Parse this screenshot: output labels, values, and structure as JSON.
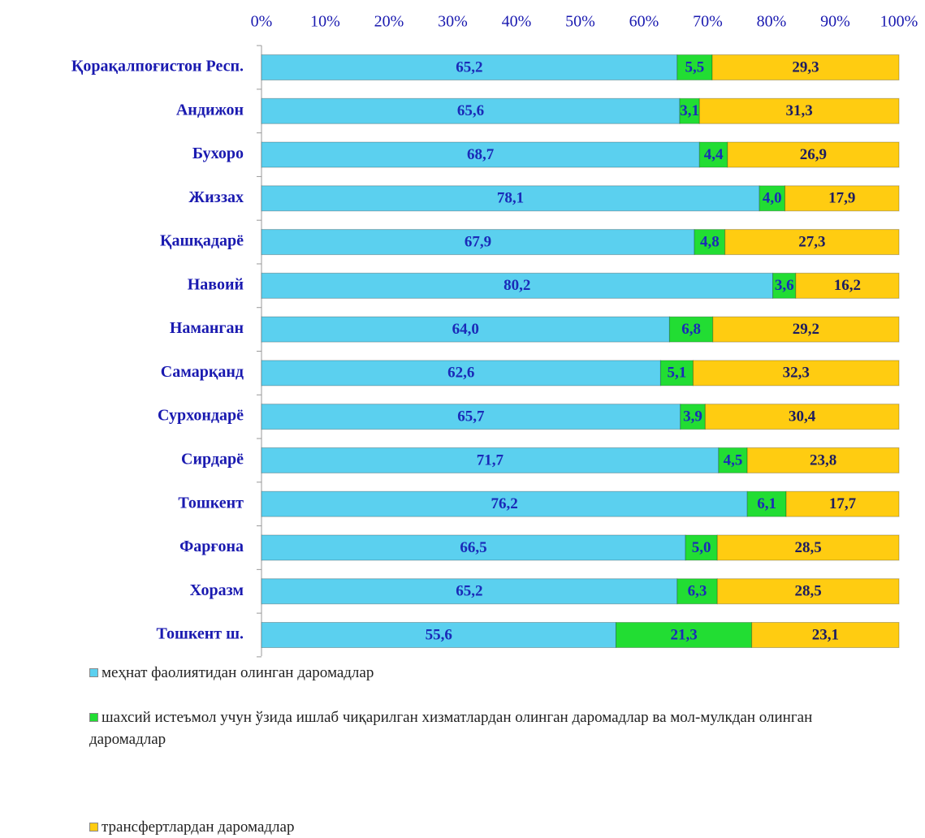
{
  "chart_data": {
    "type": "stacked_barh",
    "categories": [
      "Қорақалпоғистон Респ.",
      "Андижон",
      "Бухоро",
      "Жиззах",
      "Қашқадарё",
      "Навоий",
      "Наманган",
      "Самарқанд",
      "Сурхондарё",
      "Сирдарё",
      "Тошкент",
      "Фарғона",
      "Хоразм",
      "Тошкент ш."
    ],
    "series": [
      {
        "name": "меҳнат фаолиятидан олинган даромадлар",
        "color": "#5bd0ef",
        "values": [
          65.2,
          65.6,
          68.7,
          78.1,
          67.9,
          80.2,
          64.0,
          62.6,
          65.7,
          71.7,
          76.2,
          66.5,
          65.2,
          55.6
        ],
        "value_labels": [
          "65,2",
          "65,6",
          "68,7",
          "78,1",
          "67,9",
          "80,2",
          "64,0",
          "62,6",
          "65,7",
          "71,7",
          "76,2",
          "66,5",
          "65,2",
          "55,6"
        ]
      },
      {
        "name": "шахсий истеъмол учун ўзида ишлаб чиқарилган хизматлардан олинган даромадлар ва мол-мулкдан олинган даромадлар",
        "color": "#22dd33",
        "values": [
          5.5,
          3.1,
          4.4,
          4.0,
          4.8,
          3.6,
          6.8,
          5.1,
          3.9,
          4.5,
          6.1,
          5.0,
          6.3,
          21.3
        ],
        "value_labels": [
          "5,5",
          "3,1",
          "4,4",
          "4,0",
          "4,8",
          "3,6",
          "6,8",
          "5,1",
          "3,9",
          "4,5",
          "6,1",
          "5,0",
          "6,3",
          "21,3"
        ]
      },
      {
        "name": "трансфертлардан даромадлар",
        "color": "#ffcc11",
        "values": [
          29.3,
          31.3,
          26.9,
          17.9,
          27.3,
          16.2,
          29.2,
          32.3,
          30.4,
          23.8,
          17.7,
          28.5,
          28.5,
          23.1
        ],
        "value_labels": [
          "29,3",
          "31,3",
          "26,9",
          "17,9",
          "27,3",
          "16,2",
          "29,2",
          "32,3",
          "30,4",
          "23,8",
          "17,7",
          "28,5",
          "28,5",
          "23,1"
        ]
      }
    ],
    "xlim": [
      0,
      100
    ],
    "xticks": [
      {
        "value": 0,
        "label": "0%"
      },
      {
        "value": 10,
        "label": "10%"
      },
      {
        "value": 20,
        "label": "20%"
      },
      {
        "value": 30,
        "label": "30%"
      },
      {
        "value": 40,
        "label": "40%"
      },
      {
        "value": 50,
        "label": "50%"
      },
      {
        "value": 60,
        "label": "60%"
      },
      {
        "value": 70,
        "label": "70%"
      },
      {
        "value": 80,
        "label": "80%"
      },
      {
        "value": 90,
        "label": "90%"
      },
      {
        "value": 100,
        "label": "100%"
      }
    ],
    "legend": "bottom"
  }
}
